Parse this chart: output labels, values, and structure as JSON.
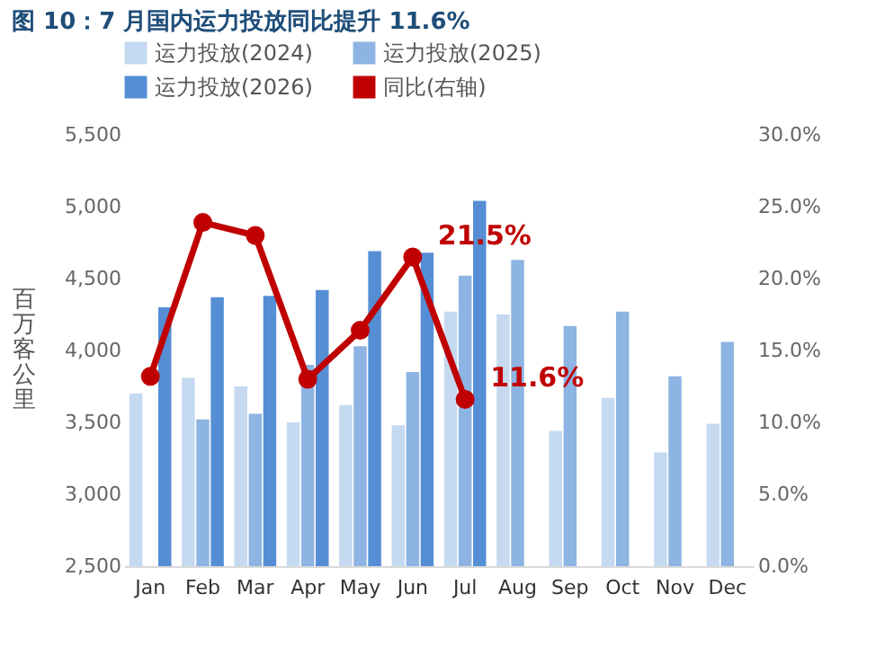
{
  "chart_data": {
    "type": "bar",
    "title": "图 10：7 月国内运力投放同比提升 11.6%",
    "ylabel": "百万客公里",
    "categories": [
      "Jan",
      "Feb",
      "Mar",
      "Apr",
      "May",
      "Jun",
      "Jul",
      "Aug",
      "Sep",
      "Oct",
      "Nov",
      "Dec"
    ],
    "series": [
      {
        "name": "运力投放(2024)",
        "color": "#c5d9f1",
        "values": [
          3700,
          3810,
          3750,
          3500,
          3620,
          3480,
          4270,
          4250,
          3440,
          3670,
          3290,
          3490
        ]
      },
      {
        "name": "运力投放(2025)",
        "color": "#8db4e2",
        "values": [
          null,
          3520,
          3560,
          3900,
          4030,
          3850,
          4520,
          4630,
          4170,
          4270,
          3820,
          4060
        ]
      },
      {
        "name": "运力投放(2026)",
        "color": "#558ed5",
        "values": [
          4300,
          4370,
          4380,
          4420,
          4690,
          4680,
          5040,
          null,
          null,
          null,
          null,
          null
        ]
      },
      {
        "name": "同比(右轴)",
        "color": "#c00000",
        "type": "line",
        "axis": "y2",
        "marker": "circle",
        "values": [
          13.2,
          23.9,
          23.0,
          13.0,
          16.4,
          21.5,
          11.6,
          null,
          null,
          null,
          null,
          null
        ],
        "value_labels": [
          null,
          null,
          null,
          null,
          null,
          "21.5%",
          "11.6%",
          null,
          null,
          null,
          null,
          null
        ]
      }
    ],
    "ylim": [
      2500,
      5500
    ],
    "yticks": [
      {
        "value": 2500,
        "label": "2,500"
      },
      {
        "value": 3000,
        "label": "3,000"
      },
      {
        "value": 3500,
        "label": "3,500"
      },
      {
        "value": 4000,
        "label": "4,000"
      },
      {
        "value": 4500,
        "label": "4,500"
      },
      {
        "value": 5000,
        "label": "5,000"
      },
      {
        "value": 5500,
        "label": "5,500"
      }
    ],
    "y2lim": [
      0,
      30
    ],
    "y2ticks": [
      {
        "value": 0,
        "label": "0.0%"
      },
      {
        "value": 5,
        "label": "5.0%"
      },
      {
        "value": 10,
        "label": "10.0%"
      },
      {
        "value": 15,
        "label": "15.0%"
      },
      {
        "value": 20,
        "label": "20.0%"
      },
      {
        "value": 25,
        "label": "25.0%"
      },
      {
        "value": 30,
        "label": "30.0%"
      }
    ],
    "grid": false,
    "legend": "top"
  }
}
